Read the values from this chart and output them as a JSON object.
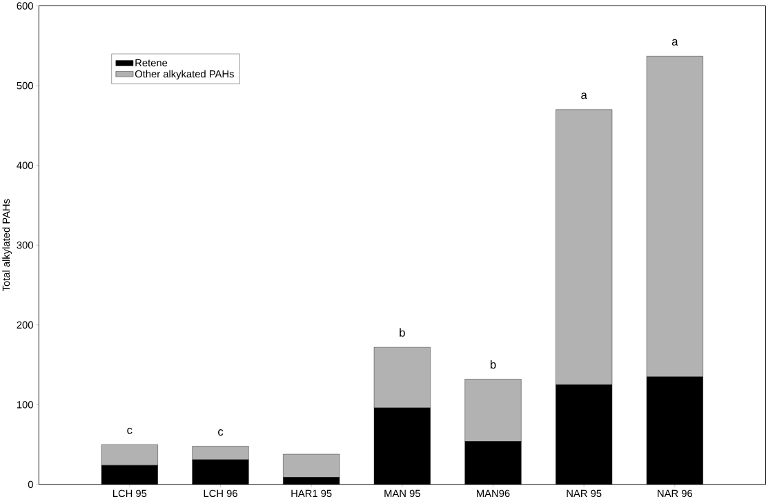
{
  "chart_data": {
    "type": "bar",
    "stacked": true,
    "ylabel": "Total alkylated PAHs",
    "categories": [
      "LCH 95",
      "LCH 96",
      "HAR1 95",
      "MAN 95",
      "MAN96",
      "NAR 95",
      "NAR 96"
    ],
    "series": [
      {
        "name": "Retene",
        "color": "#000000",
        "values": [
          24,
          31,
          9,
          96,
          54,
          125,
          135
        ]
      },
      {
        "name": "Other alkykated PAHs",
        "color": "#b2b2b2",
        "values": [
          26,
          17,
          29,
          76,
          78,
          345,
          402
        ]
      }
    ],
    "ylim": [
      0,
      600
    ],
    "yticks": [
      0,
      100,
      200,
      300,
      400,
      500,
      600
    ],
    "annotations": [
      {
        "text": "c",
        "x": "LCH 95",
        "y": 50
      },
      {
        "text": "c",
        "x": "LCH 96",
        "y": 48
      },
      {
        "text": "b",
        "x": "MAN 95",
        "y": 172
      },
      {
        "text": "b",
        "x": "MAN96",
        "y": 132
      },
      {
        "text": "a",
        "x": "NAR 95",
        "y": 470
      },
      {
        "text": "a",
        "x": "NAR 96",
        "y": 537
      }
    ],
    "legend": "top left",
    "grid": false
  }
}
